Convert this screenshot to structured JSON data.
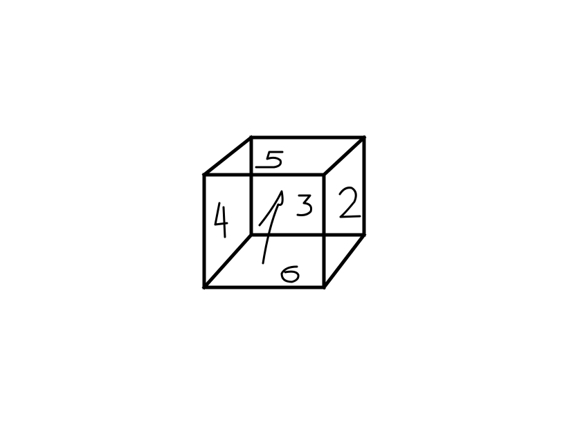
{
  "diagram": {
    "type": "cube-net-sketch",
    "face_labels": [
      {
        "face": "front",
        "label": "1"
      },
      {
        "face": "right",
        "label": "2"
      },
      {
        "face": "back",
        "label": "3"
      },
      {
        "face": "left",
        "label": "4"
      },
      {
        "face": "top",
        "label": "5"
      },
      {
        "face": "bottom",
        "label": "6"
      }
    ],
    "colors": {
      "background": "#ffffff",
      "line": "#000000"
    }
  }
}
